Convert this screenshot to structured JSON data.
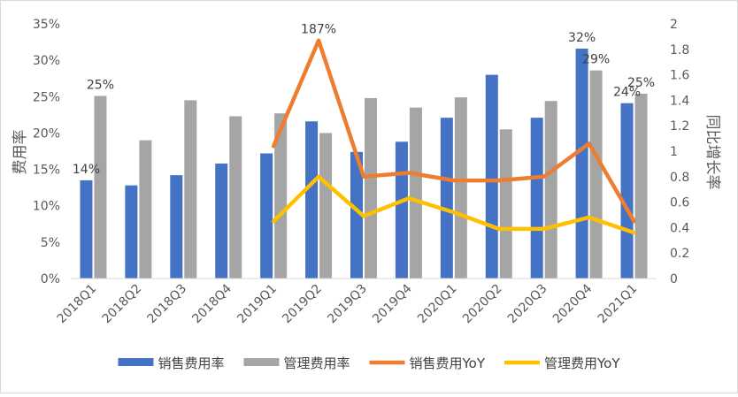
{
  "chart_data": {
    "type": "bar",
    "categories": [
      "2018Q1",
      "2018Q2",
      "2018Q3",
      "2018Q4",
      "2019Q1",
      "2019Q2",
      "2019Q3",
      "2019Q4",
      "2020Q1",
      "2020Q2",
      "2020Q3",
      "2020Q4",
      "2021Q1"
    ],
    "series": [
      {
        "name": "销售费用率",
        "type": "bar",
        "axis": "left",
        "color": "#4472C4",
        "values": [
          13.5,
          12.8,
          14.2,
          15.8,
          17.2,
          21.6,
          17.4,
          18.8,
          22.1,
          28.0,
          22.1,
          31.6,
          24.1
        ]
      },
      {
        "name": "管理费用率",
        "type": "bar",
        "axis": "left",
        "color": "#A5A5A5",
        "values": [
          25.1,
          19.0,
          24.5,
          22.3,
          22.7,
          20.0,
          24.8,
          23.5,
          24.9,
          20.5,
          24.4,
          28.6,
          25.4
        ]
      },
      {
        "name": "销售费用YoY",
        "type": "line",
        "axis": "right",
        "color": "#ED7D31",
        "values": [
          null,
          null,
          null,
          null,
          1.04,
          1.87,
          0.8,
          0.83,
          0.77,
          0.77,
          0.8,
          1.06,
          0.45
        ]
      },
      {
        "name": "管理费用YoY",
        "type": "line",
        "axis": "right",
        "color": "#FFC000",
        "values": [
          null,
          null,
          null,
          null,
          0.45,
          0.8,
          0.49,
          0.63,
          0.52,
          0.39,
          0.39,
          0.48,
          0.36
        ]
      }
    ],
    "ylabel": "费用率",
    "y2label": "同比增长率",
    "ylim": [
      0,
      35
    ],
    "yticks": [
      "0%",
      "5%",
      "10%",
      "15%",
      "20%",
      "25%",
      "30%",
      "35%"
    ],
    "y2lim": [
      0,
      2
    ],
    "y2ticks": [
      "0",
      "0.2",
      "0.4",
      "0.6",
      "0.8",
      "1",
      "1.2",
      "1.4",
      "1.6",
      "1.8",
      "2"
    ],
    "annotations": [
      {
        "text": "14%",
        "series": 0,
        "index": 0
      },
      {
        "text": "25%",
        "series": 1,
        "index": 0
      },
      {
        "text": "187%",
        "series": 2,
        "index": 5
      },
      {
        "text": "32%",
        "series": 0,
        "index": 11
      },
      {
        "text": "29%",
        "series": 1,
        "index": 11
      },
      {
        "text": "24%",
        "series": 0,
        "index": 12
      },
      {
        "text": "25%",
        "series": 1,
        "index": 12
      }
    ],
    "legend_position": "bottom",
    "grid": false
  }
}
